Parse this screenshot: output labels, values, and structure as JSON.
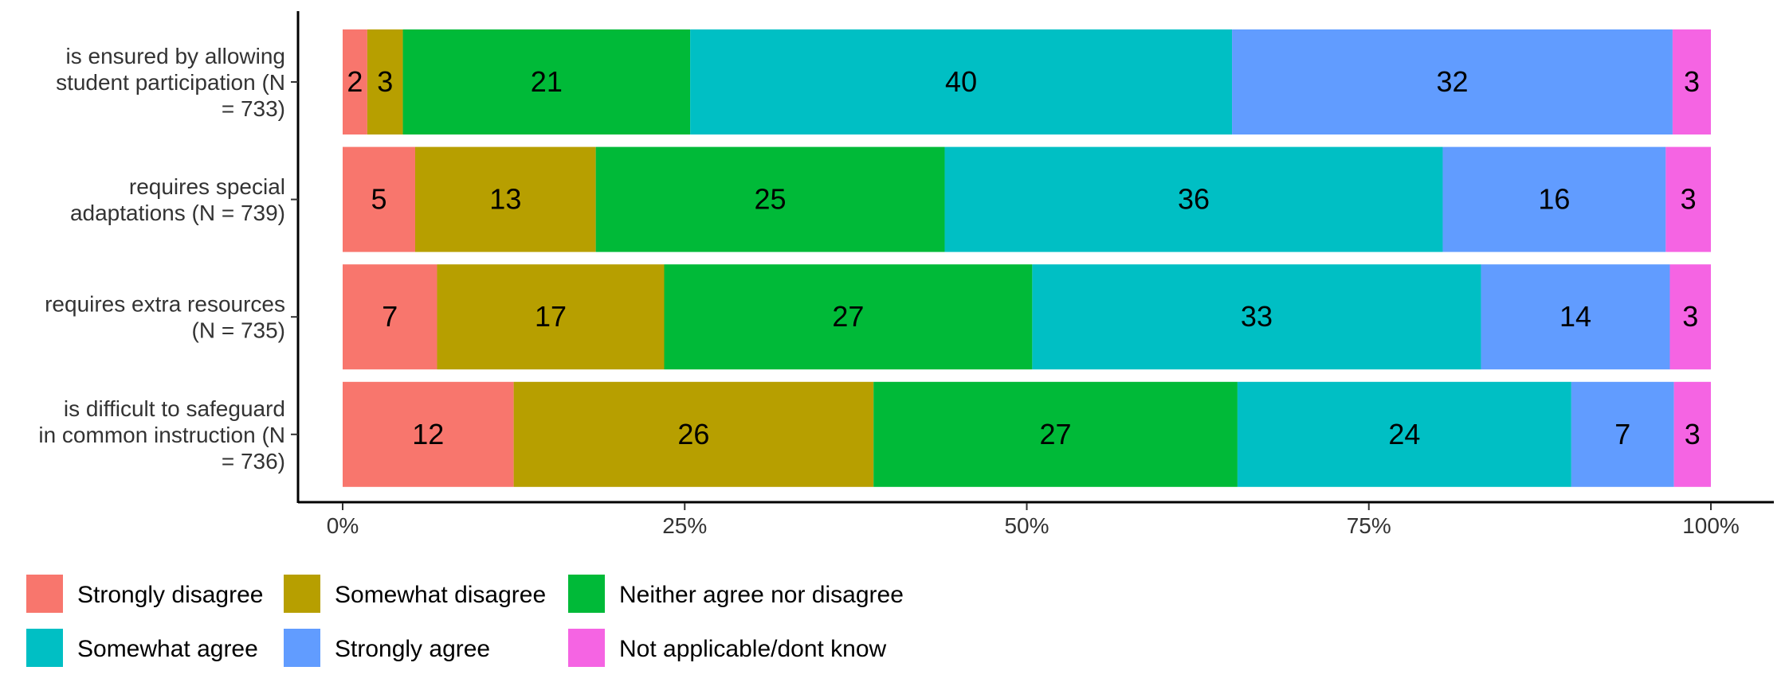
{
  "chart_data": {
    "type": "bar",
    "orientation": "horizontal",
    "stacked": "percent",
    "title": "",
    "xlabel": "",
    "ylabel": "",
    "xlim": [
      0,
      100
    ],
    "x_ticks": [
      "0%",
      "25%",
      "50%",
      "75%",
      "100%"
    ],
    "grid": false,
    "legend_position": "bottom",
    "categories": [
      [
        "is ensured by allowing",
        "student participation (N",
        "= 733)"
      ],
      [
        "requires special",
        "adaptations (N = 739)"
      ],
      [
        "requires extra resources",
        "(N = 735)"
      ],
      [
        "is difficult to safeguard",
        "in common instruction (N",
        "= 736)"
      ]
    ],
    "series": [
      {
        "name": "Strongly disagree",
        "color": "#F8766D",
        "values": [
          1.8,
          5.3,
          6.9,
          12.5
        ]
      },
      {
        "name": "Somewhat disagree",
        "color": "#B79F00",
        "values": [
          2.6,
          13.2,
          16.6,
          26.3
        ]
      },
      {
        "name": "Neither agree nor disagree",
        "color": "#00BA38",
        "values": [
          21.0,
          25.5,
          26.9,
          26.6
        ]
      },
      {
        "name": "Somewhat agree",
        "color": "#00BFC4",
        "values": [
          39.6,
          36.4,
          32.8,
          24.4
        ]
      },
      {
        "name": "Strongly agree",
        "color": "#619CFF",
        "values": [
          32.2,
          16.3,
          13.8,
          7.5
        ]
      },
      {
        "name": "Not applicable/dont know",
        "color": "#F564E3",
        "values": [
          2.8,
          3.3,
          3.0,
          2.7
        ]
      }
    ],
    "data_labels": [
      [
        "2",
        "3",
        "21",
        "40",
        "32",
        "3"
      ],
      [
        "5",
        "13",
        "25",
        "36",
        "16",
        "3"
      ],
      [
        "7",
        "17",
        "27",
        "33",
        "14",
        "3"
      ],
      [
        "12",
        "26",
        "27",
        "24",
        "7",
        "3"
      ]
    ]
  }
}
